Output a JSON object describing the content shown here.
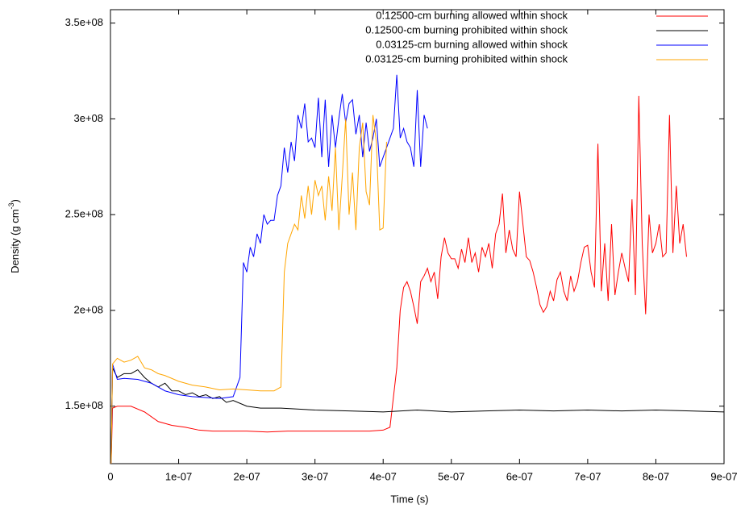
{
  "chart_data": {
    "type": "line",
    "xlabel": "Time (s)",
    "ylabel": {
      "text": "Density (g cm",
      "sup": "-3",
      "end": ")"
    },
    "xlim": [
      0,
      9e-07
    ],
    "ylim": [
      120000000.0,
      357000000.0
    ],
    "xticks": [
      0,
      {
        "value": 1e-07,
        "label": "1e-07"
      },
      {
        "value": 2e-07,
        "label": "2e-07"
      },
      {
        "value": 3e-07,
        "label": "3e-07"
      },
      {
        "value": 4e-07,
        "label": "4e-07"
      },
      {
        "value": 5e-07,
        "label": "5e-07"
      },
      {
        "value": 6e-07,
        "label": "6e-07"
      },
      {
        "value": 7e-07,
        "label": "7e-07"
      },
      {
        "value": 8e-07,
        "label": "8e-07"
      },
      {
        "value": 9e-07,
        "label": "9e-07"
      }
    ],
    "yticks": [
      {
        "value": 150000000.0,
        "label": "1.5e+08"
      },
      {
        "value": 200000000.0,
        "label": "2e+08"
      },
      {
        "value": 250000000.0,
        "label": "2.5e+08"
      },
      {
        "value": 300000000.0,
        "label": "3e+08"
      },
      {
        "value": 350000000.0,
        "label": "3.5e+08"
      }
    ],
    "legend": "top-right",
    "series": [
      {
        "name": "0.12500-cm  burning allowed within shock",
        "color": "#ff0000",
        "x": [
          1e-09,
          3e-09,
          1e-08,
          3e-08,
          5e-08,
          7e-08,
          9e-08,
          1.1e-07,
          1.3e-07,
          1.5e-07,
          2e-07,
          2.3e-07,
          2.6e-07,
          3e-07,
          3.5e-07,
          3.8e-07,
          4e-07,
          4.1e-07,
          4.2e-07,
          4.25e-07,
          4.3e-07,
          4.35e-07,
          4.4e-07,
          4.45e-07,
          4.5e-07,
          4.55e-07,
          4.6e-07,
          4.65e-07,
          4.7e-07,
          4.75e-07,
          4.8e-07,
          4.85e-07,
          4.9e-07,
          4.95e-07,
          5e-07,
          5.05e-07,
          5.1e-07,
          5.15e-07,
          5.2e-07,
          5.25e-07,
          5.3e-07,
          5.35e-07,
          5.4e-07,
          5.45e-07,
          5.5e-07,
          5.55e-07,
          5.6e-07,
          5.65e-07,
          5.7e-07,
          5.75e-07,
          5.8e-07,
          5.85e-07,
          5.9e-07,
          5.95e-07,
          6e-07,
          6.05e-07,
          6.1e-07,
          6.15e-07,
          6.2e-07,
          6.25e-07,
          6.3e-07,
          6.35e-07,
          6.4e-07,
          6.45e-07,
          6.5e-07,
          6.55e-07,
          6.6e-07,
          6.65e-07,
          6.7e-07,
          6.75e-07,
          6.8e-07,
          6.85e-07,
          6.9e-07,
          6.95e-07,
          7e-07,
          7.05e-07,
          7.1e-07,
          7.15e-07,
          7.2e-07,
          7.25e-07,
          7.3e-07,
          7.35e-07,
          7.4e-07,
          7.45e-07,
          7.5e-07,
          7.55e-07,
          7.6e-07,
          7.65e-07,
          7.7e-07,
          7.75e-07,
          7.8e-07,
          7.85e-07,
          7.9e-07,
          7.95e-07,
          8e-07,
          8.05e-07,
          8.1e-07,
          8.15e-07,
          8.2e-07,
          8.25e-07,
          8.3e-07,
          8.35e-07,
          8.4e-07,
          8.45e-07
        ],
        "values": [
          120000000.0,
          149000000.0,
          150000000.0,
          150000000.0,
          147000000.0,
          142000000.0,
          140000000.0,
          139000000.0,
          137500000.0,
          137000000.0,
          137000000.0,
          136500000.0,
          137000000.0,
          137000000.0,
          137000000.0,
          137000000.0,
          137500000.0,
          139000000.0,
          170000000.0,
          200000000.0,
          212000000.0,
          215000000.0,
          210000000.0,
          202000000.0,
          193000000.0,
          215000000.0,
          218000000.0,
          222000000.0,
          215000000.0,
          220000000.0,
          206000000.0,
          228000000.0,
          238000000.0,
          230000000.0,
          227000000.0,
          227000000.0,
          222000000.0,
          232000000.0,
          225000000.0,
          238000000.0,
          225000000.0,
          230000000.0,
          220000000.0,
          233000000.0,
          228000000.0,
          235000000.0,
          222000000.0,
          240000000.0,
          245000000.0,
          261000000.0,
          230000000.0,
          242000000.0,
          232000000.0,
          228000000.0,
          262000000.0,
          245000000.0,
          228000000.0,
          226000000.0,
          220000000.0,
          212000000.0,
          203000000.0,
          199000000.0,
          202000000.0,
          210000000.0,
          205000000.0,
          216000000.0,
          220000000.0,
          210000000.0,
          205000000.0,
          218000000.0,
          210000000.0,
          215000000.0,
          225000000.0,
          233000000.0,
          234000000.0,
          220000000.0,
          212000000.0,
          287000000.0,
          210000000.0,
          235000000.0,
          205000000.0,
          245000000.0,
          208000000.0,
          220000000.0,
          230000000.0,
          222000000.0,
          215000000.0,
          258000000.0,
          208000000.0,
          312000000.0,
          235000000.0,
          198000000.0,
          250000000.0,
          230000000.0,
          235000000.0,
          245000000.0,
          228000000.0,
          230000000.0,
          302000000.0,
          230000000.0,
          265000000.0,
          235000000.0,
          245000000.0,
          228000000.0
        ]
      },
      {
        "name": "0.12500-cm  burning prohibited within shock",
        "color": "#000000",
        "x": [
          1e-09,
          3e-09,
          1e-08,
          2e-08,
          3e-08,
          4e-08,
          5e-08,
          6e-08,
          7e-08,
          8e-08,
          9e-08,
          1e-07,
          1.1e-07,
          1.2e-07,
          1.3e-07,
          1.4e-07,
          1.5e-07,
          1.6e-07,
          1.7e-07,
          1.8e-07,
          2e-07,
          2.2e-07,
          2.5e-07,
          3e-07,
          3.5e-07,
          4e-07,
          4.5e-07,
          5e-07,
          5.5e-07,
          6e-07,
          6.5e-07,
          7e-07,
          7.5e-07,
          8e-07,
          8.5e-07,
          9e-07
        ],
        "values": [
          120000000.0,
          170000000.0,
          165000000.0,
          167000000.0,
          167000000.0,
          169000000.0,
          165000000.0,
          162000000.0,
          160000000.0,
          162000000.0,
          158000000.0,
          158000000.0,
          156000000.0,
          157000000.0,
          155000000.0,
          156000000.0,
          154000000.0,
          155000000.0,
          152000000.0,
          153000000.0,
          150000000.0,
          149000000.0,
          149000000.0,
          148000000.0,
          147500000.0,
          147000000.0,
          148000000.0,
          147000000.0,
          147500000.0,
          148000000.0,
          147500000.0,
          148000000.0,
          147500000.0,
          148000000.0,
          147500000.0,
          147000000.0
        ]
      },
      {
        "name": "0.03125-cm  burning allowed within shock",
        "color": "#0000ff",
        "x": [
          1e-09,
          3e-09,
          1e-08,
          2e-08,
          4e-08,
          6e-08,
          8e-08,
          1e-07,
          1.2e-07,
          1.4e-07,
          1.6e-07,
          1.8e-07,
          1.9e-07,
          1.95e-07,
          2e-07,
          2.05e-07,
          2.1e-07,
          2.15e-07,
          2.2e-07,
          2.25e-07,
          2.3e-07,
          2.35e-07,
          2.4e-07,
          2.45e-07,
          2.5e-07,
          2.55e-07,
          2.6e-07,
          2.65e-07,
          2.7e-07,
          2.75e-07,
          2.8e-07,
          2.85e-07,
          2.9e-07,
          2.95e-07,
          3e-07,
          3.05e-07,
          3.1e-07,
          3.15e-07,
          3.2e-07,
          3.25e-07,
          3.3e-07,
          3.35e-07,
          3.4e-07,
          3.45e-07,
          3.5e-07,
          3.55e-07,
          3.6e-07,
          3.65e-07,
          3.7e-07,
          3.75e-07,
          3.8e-07,
          3.85e-07,
          3.9e-07,
          3.95e-07,
          4e-07,
          4.05e-07,
          4.1e-07,
          4.15e-07,
          4.2e-07,
          4.25e-07,
          4.3e-07,
          4.35e-07,
          4.4e-07,
          4.45e-07,
          4.5e-07,
          4.55e-07,
          4.6e-07,
          4.65e-07
        ],
        "values": [
          120000000.0,
          172000000.0,
          164000000.0,
          164500000.0,
          164000000.0,
          162000000.0,
          158000000.0,
          156000000.0,
          155000000.0,
          154500000.0,
          154000000.0,
          155000000.0,
          165000000.0,
          225000000.0,
          220000000.0,
          233000000.0,
          228000000.0,
          240000000.0,
          235000000.0,
          250000000.0,
          245000000.0,
          247000000.0,
          247000000.0,
          260000000.0,
          265000000.0,
          285000000.0,
          272000000.0,
          288000000.0,
          278000000.0,
          302000000.0,
          295000000.0,
          308000000.0,
          288000000.0,
          290000000.0,
          285000000.0,
          311000000.0,
          280000000.0,
          310000000.0,
          275000000.0,
          302000000.0,
          285000000.0,
          300000000.0,
          313000000.0,
          298000000.0,
          308000000.0,
          310000000.0,
          292000000.0,
          302000000.0,
          280000000.0,
          298000000.0,
          283000000.0,
          290000000.0,
          300000000.0,
          275000000.0,
          280000000.0,
          285000000.0,
          290000000.0,
          295000000.0,
          323000000.0,
          290000000.0,
          295000000.0,
          288000000.0,
          285000000.0,
          275000000.0,
          315000000.0,
          275000000.0,
          302000000.0,
          295000000.0
        ]
      },
      {
        "name": "0.03125-cm  burning prohibited within shock",
        "color": "#ffa500",
        "x": [
          1e-09,
          3e-09,
          1e-08,
          2e-08,
          3e-08,
          4e-08,
          5e-08,
          6e-08,
          7e-08,
          8e-08,
          1e-07,
          1.2e-07,
          1.4e-07,
          1.6e-07,
          1.8e-07,
          2e-07,
          2.2e-07,
          2.4e-07,
          2.5e-07,
          2.55e-07,
          2.6e-07,
          2.65e-07,
          2.7e-07,
          2.75e-07,
          2.8e-07,
          2.85e-07,
          2.9e-07,
          2.95e-07,
          3e-07,
          3.05e-07,
          3.1e-07,
          3.15e-07,
          3.2e-07,
          3.25e-07,
          3.3e-07,
          3.35e-07,
          3.4e-07,
          3.45e-07,
          3.5e-07,
          3.55e-07,
          3.6e-07,
          3.65e-07,
          3.7e-07,
          3.75e-07,
          3.8e-07,
          3.85e-07,
          3.9e-07,
          3.95e-07,
          4e-07,
          4.05e-07
        ],
        "values": [
          120000000.0,
          172000000.0,
          175000000.0,
          173000000.0,
          174000000.0,
          176000000.0,
          170000000.0,
          169000000.0,
          167000000.0,
          166000000.0,
          163000000.0,
          161000000.0,
          160000000.0,
          158500000.0,
          159000000.0,
          158500000.0,
          158000000.0,
          158000000.0,
          160000000.0,
          220000000.0,
          235000000.0,
          240000000.0,
          245000000.0,
          242000000.0,
          260000000.0,
          248000000.0,
          265000000.0,
          250000000.0,
          268000000.0,
          260000000.0,
          265000000.0,
          247000000.0,
          270000000.0,
          252000000.0,
          285000000.0,
          242000000.0,
          270000000.0,
          300000000.0,
          250000000.0,
          272000000.0,
          242000000.0,
          285000000.0,
          298000000.0,
          262000000.0,
          255000000.0,
          302000000.0,
          288000000.0,
          242000000.0,
          243000000.0,
          288000000.0
        ]
      }
    ]
  }
}
